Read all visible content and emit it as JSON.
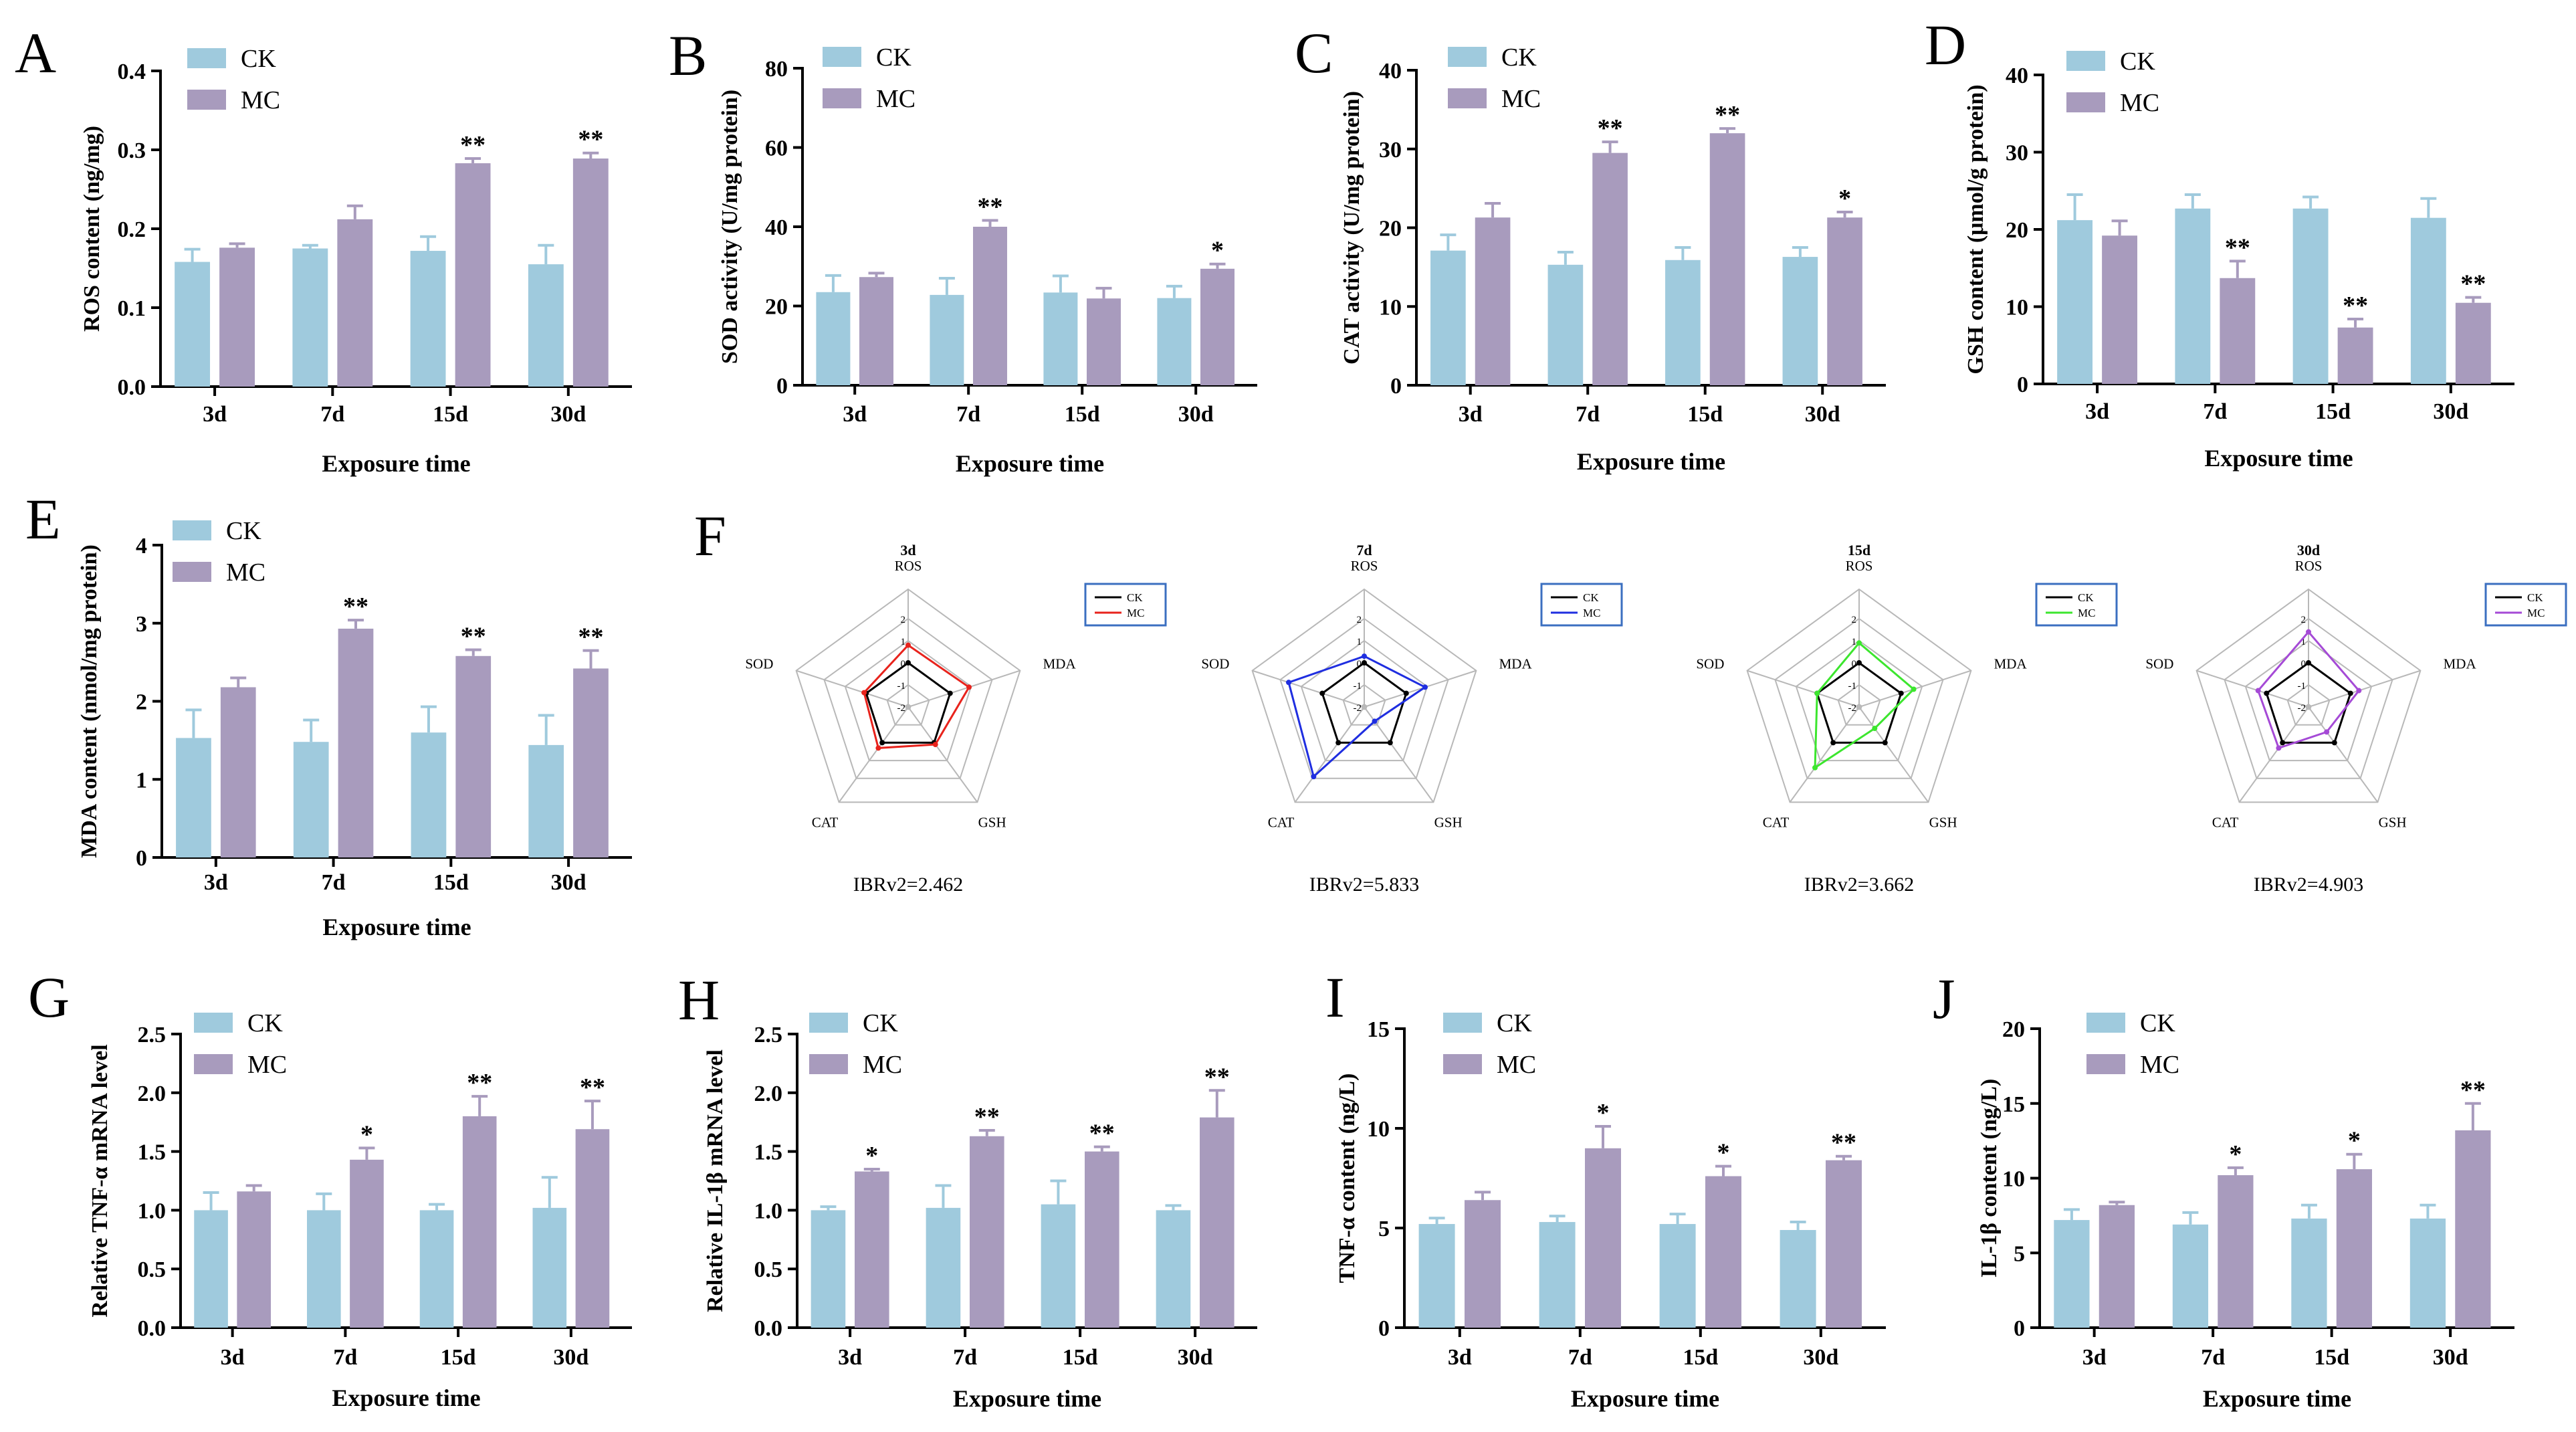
{
  "colors": {
    "ck": "#9fcadd",
    "mc": "#a89bbd",
    "axis": "#000000",
    "radar_ck": "#000000",
    "radar_grid": "#b8b8b8",
    "legend_border": "#3b6fc0"
  },
  "chart_data": [
    {
      "type": "bar",
      "panel": "A",
      "ylabel": "ROS content (ng/mg)",
      "xlabel": "Exposure time",
      "categories": [
        "3d",
        "7d",
        "15d",
        "30d"
      ],
      "ylim": [
        0,
        0.4
      ],
      "yticks": [
        "0.0",
        "0.1",
        "0.2",
        "0.3",
        "0.4"
      ],
      "series": [
        {
          "name": "CK",
          "values": [
            0.158,
            0.175,
            0.172,
            0.155
          ],
          "errors": [
            0.016,
            0.004,
            0.018,
            0.024
          ]
        },
        {
          "name": "MC",
          "values": [
            0.176,
            0.212,
            0.283,
            0.289
          ],
          "errors": [
            0.005,
            0.017,
            0.006,
            0.007
          ]
        }
      ],
      "significance": [
        "",
        "",
        "**",
        "**"
      ]
    },
    {
      "type": "bar",
      "panel": "B",
      "ylabel": "SOD activity (U/mg protein)",
      "xlabel": "Exposure time",
      "categories": [
        "3d",
        "7d",
        "15d",
        "30d"
      ],
      "ylim": [
        0,
        80
      ],
      "yticks": [
        "0",
        "20",
        "40",
        "60",
        "80"
      ],
      "series": [
        {
          "name": "CK",
          "values": [
            23.5,
            22.8,
            23.4,
            22.0
          ],
          "errors": [
            4.2,
            4.2,
            4.2,
            3.0
          ]
        },
        {
          "name": "MC",
          "values": [
            27.3,
            40.0,
            21.9,
            29.4
          ],
          "errors": [
            1.0,
            1.6,
            2.6,
            1.2
          ]
        }
      ],
      "significance": [
        "",
        "**",
        "",
        "*"
      ]
    },
    {
      "type": "bar",
      "panel": "C",
      "ylabel": "CAT activity (U/mg protein)",
      "xlabel": "Exposure time",
      "categories": [
        "3d",
        "7d",
        "15d",
        "30d"
      ],
      "ylim": [
        0,
        40
      ],
      "yticks": [
        "0",
        "10",
        "20",
        "30",
        "40"
      ],
      "series": [
        {
          "name": "CK",
          "values": [
            17.1,
            15.3,
            15.9,
            16.3
          ],
          "errors": [
            2.0,
            1.6,
            1.6,
            1.2
          ]
        },
        {
          "name": "MC",
          "values": [
            21.3,
            29.5,
            32.0,
            21.3
          ],
          "errors": [
            1.8,
            1.4,
            0.6,
            0.7
          ]
        }
      ],
      "significance": [
        "",
        "**",
        "**",
        "*"
      ]
    },
    {
      "type": "bar",
      "panel": "D",
      "ylabel": "GSH content (μmol/g protein)",
      "xlabel": "Exposure time",
      "categories": [
        "3d",
        "7d",
        "15d",
        "30d"
      ],
      "ylim": [
        0,
        40
      ],
      "yticks": [
        "0",
        "10",
        "20",
        "30",
        "40"
      ],
      "series": [
        {
          "name": "CK",
          "values": [
            21.2,
            22.7,
            22.7,
            21.5
          ],
          "errors": [
            3.3,
            1.8,
            1.5,
            2.5
          ]
        },
        {
          "name": "MC",
          "values": [
            19.2,
            13.7,
            7.3,
            10.5
          ],
          "errors": [
            1.9,
            2.2,
            1.1,
            0.7
          ]
        }
      ],
      "significance": [
        "",
        "**",
        "**",
        "**"
      ]
    },
    {
      "type": "bar",
      "panel": "E",
      "ylabel": "MDA content (nmol/mg protein)",
      "xlabel": "Exposure time",
      "categories": [
        "3d",
        "7d",
        "15d",
        "30d"
      ],
      "ylim": [
        0,
        4
      ],
      "yticks": [
        "0",
        "1",
        "2",
        "3",
        "4"
      ],
      "series": [
        {
          "name": "CK",
          "values": [
            1.53,
            1.48,
            1.6,
            1.44
          ],
          "errors": [
            0.36,
            0.28,
            0.33,
            0.38
          ]
        },
        {
          "name": "MC",
          "values": [
            2.18,
            2.93,
            2.58,
            2.42
          ],
          "errors": [
            0.12,
            0.11,
            0.08,
            0.23
          ]
        }
      ],
      "significance": [
        "",
        "**",
        "**",
        "**"
      ]
    },
    {
      "type": "radar",
      "panel": "F",
      "axes": [
        "ROS",
        "MDA",
        "GSH",
        "CAT",
        "SOD"
      ],
      "rticks": [
        "2",
        "1",
        "0",
        "-1",
        "-2"
      ],
      "rlim": [
        -2,
        2
      ],
      "legend": [
        "CK",
        "MC"
      ],
      "charts": [
        {
          "title": "3d",
          "mc_color": "#e8231c",
          "ck_values": [
            0,
            0,
            0,
            0,
            0
          ],
          "mc_values": [
            0.8,
            0.9,
            0.1,
            0.3,
            0.1
          ],
          "ibr": "IBRv2=2.462"
        },
        {
          "title": "7d",
          "mc_color": "#1f2ee0",
          "ck_values": [
            0,
            0,
            0,
            0,
            0
          ],
          "mc_values": [
            0.3,
            0.9,
            -1.2,
            1.9,
            1.6
          ],
          "ibr": "IBRv2=5.833"
        },
        {
          "title": "15d",
          "mc_color": "#3ce62e",
          "ck_values": [
            0,
            0,
            0,
            0,
            0
          ],
          "mc_values": [
            0.9,
            0.6,
            -0.8,
            1.4,
            0.0
          ],
          "ibr": "IBRv2=3.662"
        },
        {
          "title": "30d",
          "mc_color": "#a54ad6",
          "ck_values": [
            0,
            0,
            0,
            0,
            0
          ],
          "mc_values": [
            1.4,
            0.4,
            -0.6,
            0.3,
            0.4
          ],
          "ibr": "IBRv2=4.903"
        }
      ]
    },
    {
      "type": "bar",
      "panel": "G",
      "ylabel": "Relative TNF-α mRNA level",
      "xlabel": "Exposure time",
      "categories": [
        "3d",
        "7d",
        "15d",
        "30d"
      ],
      "ylim": [
        0,
        2.5
      ],
      "yticks": [
        "0.0",
        "0.5",
        "1.0",
        "1.5",
        "2.0",
        "2.5"
      ],
      "series": [
        {
          "name": "CK",
          "values": [
            1.0,
            1.0,
            1.0,
            1.02
          ],
          "errors": [
            0.15,
            0.14,
            0.05,
            0.26
          ]
        },
        {
          "name": "MC",
          "values": [
            1.16,
            1.43,
            1.8,
            1.69
          ],
          "errors": [
            0.05,
            0.1,
            0.17,
            0.24
          ]
        }
      ],
      "significance": [
        "",
        "*",
        "**",
        "**"
      ]
    },
    {
      "type": "bar",
      "panel": "H",
      "ylabel": "Relative IL-1β mRNA level",
      "xlabel": "Exposure time",
      "categories": [
        "3d",
        "7d",
        "15d",
        "30d"
      ],
      "ylim": [
        0,
        2.5
      ],
      "yticks": [
        "0.0",
        "0.5",
        "1.0",
        "1.5",
        "2.0",
        "2.5"
      ],
      "series": [
        {
          "name": "CK",
          "values": [
            1.0,
            1.02,
            1.05,
            1.0
          ],
          "errors": [
            0.03,
            0.19,
            0.2,
            0.04
          ]
        },
        {
          "name": "MC",
          "values": [
            1.33,
            1.63,
            1.5,
            1.79
          ],
          "errors": [
            0.02,
            0.05,
            0.04,
            0.23
          ]
        }
      ],
      "significance": [
        "*",
        "**",
        "**",
        "**"
      ]
    },
    {
      "type": "bar",
      "panel": "I",
      "ylabel": "TNF-α content (ng/L)",
      "xlabel": "Exposure time",
      "categories": [
        "3d",
        "7d",
        "15d",
        "30d"
      ],
      "ylim": [
        0,
        15
      ],
      "yticks": [
        "0",
        "5",
        "10",
        "15"
      ],
      "series": [
        {
          "name": "CK",
          "values": [
            5.2,
            5.3,
            5.2,
            4.9
          ],
          "errors": [
            0.3,
            0.3,
            0.5,
            0.4
          ]
        },
        {
          "name": "MC",
          "values": [
            6.4,
            9.0,
            7.6,
            8.4
          ],
          "errors": [
            0.4,
            1.1,
            0.5,
            0.2
          ]
        }
      ],
      "significance": [
        "",
        "*",
        "*",
        "**"
      ]
    },
    {
      "type": "bar",
      "panel": "J",
      "ylabel": "IL-1β content (ng/L)",
      "xlabel": "Exposure time",
      "categories": [
        "3d",
        "7d",
        "15d",
        "30d"
      ],
      "ylim": [
        0,
        20
      ],
      "yticks": [
        "0",
        "5",
        "10",
        "15",
        "20"
      ],
      "series": [
        {
          "name": "CK",
          "values": [
            7.2,
            6.9,
            7.3,
            7.3
          ],
          "errors": [
            0.7,
            0.8,
            0.9,
            0.9
          ]
        },
        {
          "name": "MC",
          "values": [
            8.2,
            10.2,
            10.6,
            13.2
          ],
          "errors": [
            0.2,
            0.5,
            1.0,
            1.8
          ]
        }
      ],
      "significance": [
        "",
        "*",
        "*",
        "**"
      ]
    }
  ]
}
